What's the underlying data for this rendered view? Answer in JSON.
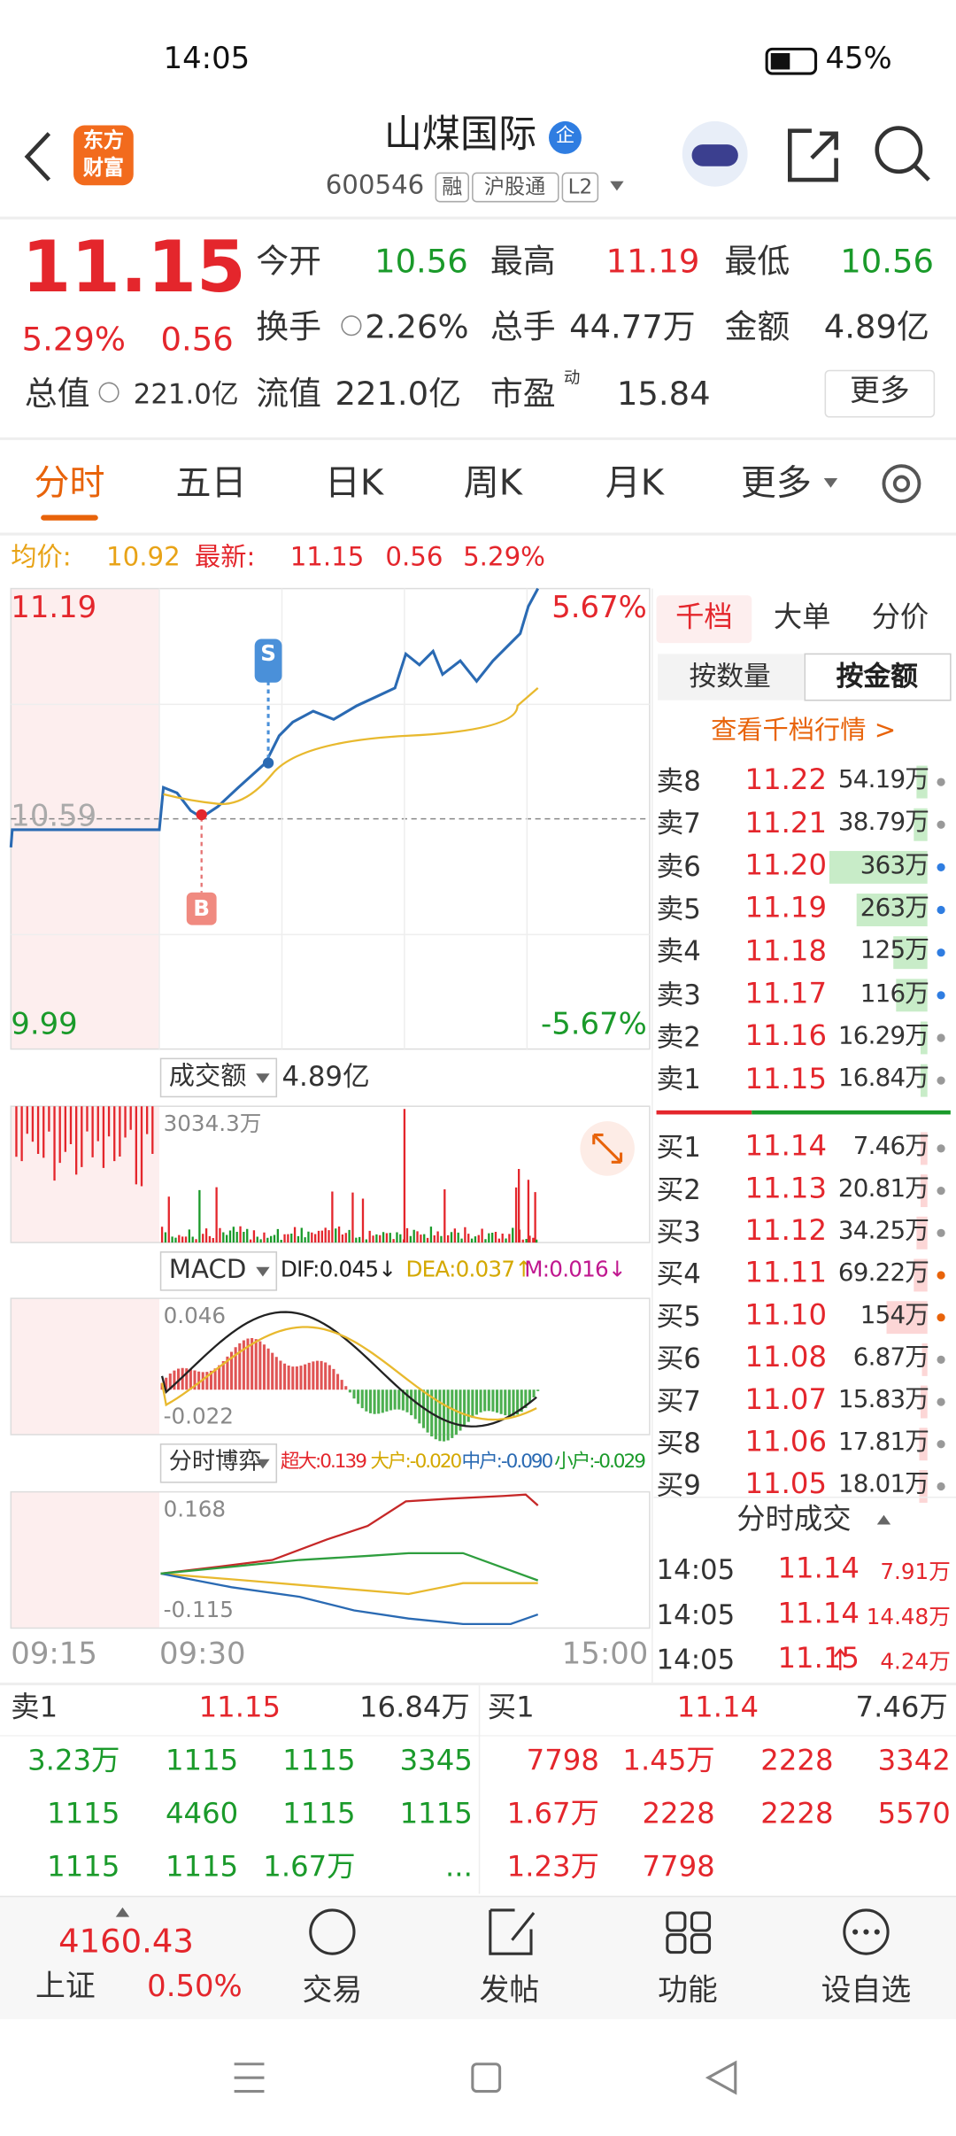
{
  "status_bar": {
    "time": "14:05",
    "battery": "45%"
  },
  "header": {
    "logo": [
      "东方",
      "财富"
    ],
    "title": "山煤国际",
    "badge": "企",
    "code": "600546",
    "tags": [
      "融",
      "沪股通",
      "L2"
    ]
  },
  "quote": {
    "price": "11.15",
    "change_pct": "5.29%",
    "change": "0.56",
    "fields": [
      {
        "label": "今开",
        "value": "10.56"
      },
      {
        "label": "最高",
        "value": "11.19"
      },
      {
        "label": "最低",
        "value": "10.56"
      },
      {
        "label": "换手",
        "value": "2.26%"
      },
      {
        "label": "总手",
        "value": "44.77万"
      },
      {
        "label": "金额",
        "value": "4.89亿"
      },
      {
        "label": "总值",
        "value": "221.0亿"
      },
      {
        "label": "流值",
        "value": "221.0亿"
      },
      {
        "label": "市盈",
        "value": "15.84",
        "superscript": "动"
      }
    ],
    "more_button": "更多"
  },
  "tabs": [
    "分时",
    "五日",
    "日K",
    "周K",
    "月K",
    "更多"
  ],
  "info_bar": {
    "avg_label": "均价:",
    "avg": "10.92",
    "latest_label": "最新:",
    "latest": "11.15",
    "change": "0.56",
    "change_pct": "5.29%"
  },
  "chart": {
    "high": "11.19",
    "prev_close": "10.59",
    "low": "9.99",
    "high_pct": "5.67%",
    "low_pct": "-5.67%",
    "sell_marker": "S",
    "buy_marker": "B",
    "volume": {
      "selector": "成交额",
      "total": "4.89亿",
      "max": "3034.3万"
    },
    "macd": {
      "selector": "MACD",
      "dif": "DIF:0.045↓",
      "dea": "DEA:0.037↑",
      "m": "M:0.016↓",
      "max": "0.046",
      "min": "-0.022"
    },
    "game": {
      "selector": "分时博弈",
      "super": "超大:0.139",
      "large": "大户:-0.020",
      "medium": "中户:-0.090",
      "small": "小户:-0.029",
      "max": "0.168",
      "min": "-0.115"
    },
    "times": [
      "09:15",
      "09:30",
      "15:00"
    ]
  },
  "order_book": {
    "tabs": [
      "千档",
      "大单",
      "分价"
    ],
    "modes": [
      "按数量",
      "按金额"
    ],
    "link": "查看千档行情 >",
    "asks": [
      {
        "label": "卖8",
        "price": "11.22",
        "amount": "54.19万"
      },
      {
        "label": "卖7",
        "price": "11.21",
        "amount": "38.79万"
      },
      {
        "label": "卖6",
        "price": "11.20",
        "amount": "363万"
      },
      {
        "label": "卖5",
        "price": "11.19",
        "amount": "263万"
      },
      {
        "label": "卖4",
        "price": "11.18",
        "amount": "125万"
      },
      {
        "label": "卖3",
        "price": "11.17",
        "amount": "116万"
      },
      {
        "label": "卖2",
        "price": "11.16",
        "amount": "16.29万"
      },
      {
        "label": "卖1",
        "price": "11.15",
        "amount": "16.84万"
      }
    ],
    "bids": [
      {
        "label": "买1",
        "price": "11.14",
        "amount": "7.46万"
      },
      {
        "label": "买2",
        "price": "11.13",
        "amount": "20.81万"
      },
      {
        "label": "买3",
        "price": "11.12",
        "amount": "34.25万"
      },
      {
        "label": "买4",
        "price": "11.11",
        "amount": "69.22万"
      },
      {
        "label": "买5",
        "price": "11.10",
        "amount": "154万"
      },
      {
        "label": "买6",
        "price": "11.08",
        "amount": "6.87万"
      },
      {
        "label": "买7",
        "price": "11.07",
        "amount": "15.83万"
      },
      {
        "label": "买8",
        "price": "11.06",
        "amount": "17.81万"
      },
      {
        "label": "买9",
        "price": "11.05",
        "amount": "18.01万"
      }
    ]
  },
  "trades": {
    "title": "分时成交",
    "rows": [
      {
        "time": "14:05",
        "price": "11.14",
        "amount": "7.91万"
      },
      {
        "time": "14:05",
        "price": "11.14",
        "amount": "14.48万"
      },
      {
        "time": "14:05",
        "price": "11.15",
        "amount": "4.24万"
      }
    ]
  },
  "depth_table": {
    "sell": {
      "label": "卖1",
      "price": "11.15",
      "amount": "16.84万",
      "orders": [
        "3.23万",
        "1115",
        "1115",
        "3345",
        "1115",
        "4460",
        "1115",
        "1115",
        "1115",
        "1115",
        "1.67万",
        "..."
      ]
    },
    "buy": {
      "label": "买1",
      "price": "11.14",
      "amount": "7.46万",
      "orders": [
        "7798",
        "1.45万",
        "2228",
        "3342",
        "1.67万",
        "2228",
        "2228",
        "5570",
        "1.23万",
        "7798"
      ]
    }
  },
  "footer": {
    "index_value": "4160.43",
    "index_name": "上证",
    "index_change": "0.50%",
    "items": [
      "交易",
      "发帖",
      "功能",
      "设自选"
    ]
  }
}
